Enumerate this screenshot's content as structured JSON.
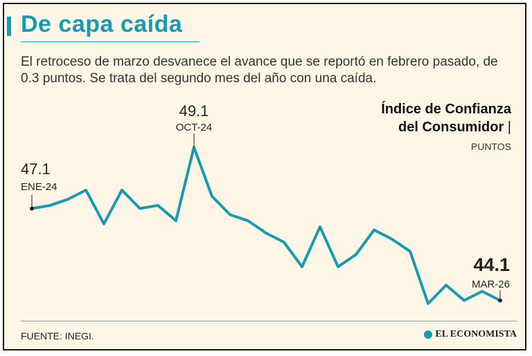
{
  "title": "De capa caída",
  "subtitle": "El retroceso de marzo desvanece el avance que se reportó en febrero pasado, de 0.3 puntos. Se trata del segundo mes del año con una caída.",
  "chart_title": {
    "line1": "Índice de Confianza",
    "line2": "del Consumidor",
    "separator": "|"
  },
  "unit": "PUNTOS",
  "source": "FUENTE: INEGI.",
  "brand": "EL ECONOMISTA",
  "colors": {
    "title": "#1a9ab1",
    "line": "#1a9ab1",
    "background": "#fdf6e6"
  },
  "chart_data": {
    "type": "line",
    "y_ascending": true,
    "xlim": [
      "2024-01",
      "2026-03"
    ],
    "ylim": [
      43.8,
      49.3
    ],
    "grid": false,
    "legend": "none",
    "series": [
      {
        "color": "#1a9ab1",
        "values": [
          {
            "x": "2024-01",
            "y": 47.1
          },
          {
            "x": "2024-02",
            "y": 47.2
          },
          {
            "x": "2024-03",
            "y": 47.4
          },
          {
            "x": "2024-04",
            "y": 47.7
          },
          {
            "x": "2024-05",
            "y": 46.6
          },
          {
            "x": "2024-06",
            "y": 47.7
          },
          {
            "x": "2024-07",
            "y": 47.1
          },
          {
            "x": "2024-08",
            "y": 47.2
          },
          {
            "x": "2024-09",
            "y": 46.7
          },
          {
            "x": "2024-10",
            "y": 49.1
          },
          {
            "x": "2024-11",
            "y": 47.5
          },
          {
            "x": "2024-12",
            "y": 46.9
          },
          {
            "x": "2025-01",
            "y": 46.7
          },
          {
            "x": "2025-02",
            "y": 46.3
          },
          {
            "x": "2025-03",
            "y": 46.0
          },
          {
            "x": "2025-04",
            "y": 45.2
          },
          {
            "x": "2025-05",
            "y": 46.5
          },
          {
            "x": "2025-06",
            "y": 45.2
          },
          {
            "x": "2025-07",
            "y": 45.6
          },
          {
            "x": "2025-08",
            "y": 46.4
          },
          {
            "x": "2025-09",
            "y": 46.1
          },
          {
            "x": "2025-10",
            "y": 45.7
          },
          {
            "x": "2025-11",
            "y": 44.0
          },
          {
            "x": "2025-12",
            "y": 44.6
          },
          {
            "x": "2026-01",
            "y": 44.1
          },
          {
            "x": "2026-02",
            "y": 44.4
          },
          {
            "x": "2026-03",
            "y": 44.1
          }
        ]
      }
    ],
    "annotations": [
      {
        "x": "2024-01",
        "value": "47.1",
        "label": "ENE-24",
        "emphasis": false
      },
      {
        "x": "2024-10",
        "value": "49.1",
        "label": "OCT-24",
        "emphasis": false
      },
      {
        "x": "2026-03",
        "value": "44.1",
        "label": "MAR-26",
        "emphasis": true
      }
    ]
  }
}
